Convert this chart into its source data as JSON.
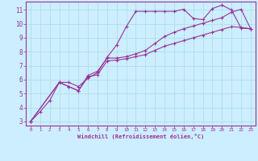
{
  "xlabel": "Windchill (Refroidissement éolien,°C)",
  "bg_color": "#cceeff",
  "grid_color": "#aadddd",
  "line_color": "#993399",
  "border_color": "#993399",
  "xlim": [
    -0.5,
    23.5
  ],
  "ylim": [
    2.7,
    11.6
  ],
  "xticks": [
    0,
    1,
    2,
    3,
    4,
    5,
    6,
    7,
    8,
    9,
    10,
    11,
    12,
    13,
    14,
    15,
    16,
    17,
    18,
    19,
    20,
    21,
    22,
    23
  ],
  "yticks": [
    3,
    4,
    5,
    6,
    7,
    8,
    9,
    10,
    11
  ],
  "line1_x": [
    0,
    1,
    2,
    3,
    4,
    5,
    6,
    7,
    8,
    9,
    10,
    11,
    12,
    13,
    14,
    15,
    16,
    17,
    18,
    19,
    20,
    21,
    22,
    23
  ],
  "line1_y": [
    3.0,
    3.7,
    4.5,
    5.8,
    5.8,
    5.5,
    6.1,
    6.5,
    7.6,
    8.5,
    9.8,
    10.9,
    10.9,
    10.9,
    10.9,
    10.9,
    11.05,
    10.4,
    10.3,
    11.1,
    11.35,
    11.0,
    9.7,
    9.65
  ],
  "line2_x": [
    0,
    3,
    4,
    5,
    6,
    7,
    8,
    9,
    10,
    11,
    12,
    13,
    14,
    15,
    16,
    17,
    18,
    19,
    20,
    21,
    22,
    23
  ],
  "line2_y": [
    3.0,
    5.8,
    5.5,
    5.2,
    6.2,
    6.35,
    7.35,
    7.4,
    7.5,
    7.65,
    7.8,
    8.1,
    8.4,
    8.6,
    8.8,
    9.0,
    9.2,
    9.4,
    9.6,
    9.8,
    9.75,
    9.65
  ],
  "line3_x": [
    0,
    3,
    4,
    5,
    6,
    7,
    8,
    9,
    10,
    11,
    12,
    13,
    14,
    15,
    16,
    17,
    18,
    19,
    20,
    21,
    22,
    23
  ],
  "line3_y": [
    3.0,
    5.8,
    5.5,
    5.2,
    6.3,
    6.6,
    7.55,
    7.55,
    7.65,
    7.85,
    8.1,
    8.6,
    9.1,
    9.4,
    9.65,
    9.85,
    10.05,
    10.25,
    10.45,
    10.85,
    11.05,
    9.65
  ]
}
